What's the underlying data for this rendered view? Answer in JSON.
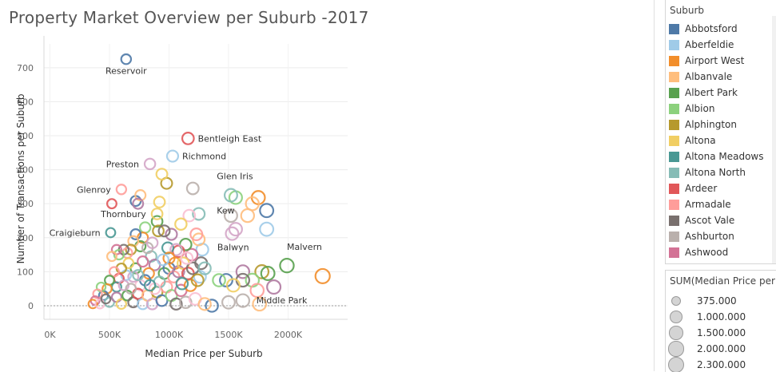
{
  "title": "Property Market Overview per Suburb -2017",
  "chart_data": {
    "type": "scatter",
    "xlabel": "Median Price per Suburb",
    "ylabel": "Number of Transactions per Suburb",
    "xlim": [
      -50000,
      2500000
    ],
    "ylim": [
      -40,
      770
    ],
    "x_ticks": [
      0,
      500000,
      1000000,
      1500000,
      2000000
    ],
    "x_tick_labels": [
      "0K",
      "500K",
      "1000K",
      "1500K",
      "2000K"
    ],
    "y_ticks": [
      0,
      100,
      200,
      300,
      400,
      500,
      600,
      700
    ],
    "y_tick_labels": [
      "0",
      "100",
      "200",
      "300",
      "400",
      "500",
      "600",
      "700"
    ],
    "grid": true,
    "labeled_points": [
      {
        "label": "Reservoir",
        "x": 640000,
        "y": 725,
        "size": 640000,
        "color": "#4e79a7",
        "label_pos": "below"
      },
      {
        "label": "Bentleigh East",
        "x": 1160000,
        "y": 492,
        "size": 1160000,
        "color": "#e15759",
        "label_pos": "right"
      },
      {
        "label": "Richmond",
        "x": 1030000,
        "y": 440,
        "size": 1030000,
        "color": "#a0cbe8",
        "label_pos": "right"
      },
      {
        "label": "Preston",
        "x": 840000,
        "y": 417,
        "size": 840000,
        "color": "#d4a6c8",
        "label_pos": "left"
      },
      {
        "label": "Glen Iris",
        "x": 1520000,
        "y": 325,
        "size": 1520000,
        "color": "#86bcb6",
        "label_pos": "above"
      },
      {
        "label": "Glenroy",
        "x": 600000,
        "y": 342,
        "size": 600000,
        "color": "#ff9d9a",
        "label_pos": "left"
      },
      {
        "label": "Thornbury",
        "x": 900000,
        "y": 270,
        "size": 900000,
        "color": "#f1ce63",
        "label_pos": "left"
      },
      {
        "label": "Kew",
        "x": 1820000,
        "y": 280,
        "size": 1820000,
        "color": "#4e79a7",
        "label_pos": "left-far"
      },
      {
        "label": "Craigieburn",
        "x": 510000,
        "y": 215,
        "size": 510000,
        "color": "#499894",
        "label_pos": "left"
      },
      {
        "label": "Balwyn",
        "x": 1820000,
        "y": 225,
        "size": 1820000,
        "color": "#a0cbe8",
        "label_pos": "below-left"
      },
      {
        "label": "Malvern",
        "x": 1990000,
        "y": 118,
        "size": 1990000,
        "color": "#59a14f",
        "label_pos": "above-right"
      },
      {
        "label": "Middle Park",
        "x": 1880000,
        "y": 55,
        "size": 1880000,
        "color": "#b07aa1",
        "label_pos": "below"
      }
    ],
    "other_points": [
      {
        "x": 2290000,
        "y": 87,
        "color": "#f28e2b"
      },
      {
        "x": 1620000,
        "y": 100,
        "color": "#b07aa1"
      },
      {
        "x": 1520000,
        "y": 265,
        "color": "#bab0ac"
      },
      {
        "x": 1480000,
        "y": 75,
        "color": "#4e79a7"
      },
      {
        "x": 1250000,
        "y": 270,
        "color": "#86bcb6"
      },
      {
        "x": 1200000,
        "y": 345,
        "color": "#bab0ac"
      },
      {
        "x": 1750000,
        "y": 318,
        "color": "#f28e2b"
      },
      {
        "x": 1700000,
        "y": 300,
        "color": "#ffbe7d"
      },
      {
        "x": 1560000,
        "y": 318,
        "color": "#8cd17d"
      },
      {
        "x": 1660000,
        "y": 265,
        "color": "#ffbe7d"
      },
      {
        "x": 1530000,
        "y": 212,
        "color": "#d4a6c8"
      },
      {
        "x": 1560000,
        "y": 225,
        "color": "#d4a6c8"
      },
      {
        "x": 1780000,
        "y": 100,
        "color": "#b6992d"
      },
      {
        "x": 1830000,
        "y": 95,
        "color": "#59a14f"
      },
      {
        "x": 1700000,
        "y": 75,
        "color": "#8cd17d"
      },
      {
        "x": 1740000,
        "y": 45,
        "color": "#ff9d9a"
      },
      {
        "x": 1760000,
        "y": 5,
        "color": "#ffbe7d"
      },
      {
        "x": 1620000,
        "y": 75,
        "color": "#79706e"
      },
      {
        "x": 1620000,
        "y": 15,
        "color": "#bab0ac"
      },
      {
        "x": 1500000,
        "y": 10,
        "color": "#bab0ac"
      },
      {
        "x": 1540000,
        "y": 60,
        "color": "#f1ce63"
      },
      {
        "x": 1420000,
        "y": 75,
        "color": "#8cd17d"
      },
      {
        "x": 1360000,
        "y": 0,
        "color": "#4e79a7"
      },
      {
        "x": 1280000,
        "y": 165,
        "color": "#a0cbe8"
      },
      {
        "x": 1270000,
        "y": 125,
        "color": "#79706e"
      },
      {
        "x": 1250000,
        "y": 195,
        "color": "#ffbe7d"
      },
      {
        "x": 1230000,
        "y": 210,
        "color": "#ff9d9a"
      },
      {
        "x": 1190000,
        "y": 150,
        "color": "#d37295"
      },
      {
        "x": 1170000,
        "y": 265,
        "color": "#fabfd2"
      },
      {
        "x": 1140000,
        "y": 180,
        "color": "#59a14f"
      },
      {
        "x": 1100000,
        "y": 240,
        "color": "#f1ce63"
      },
      {
        "x": 1080000,
        "y": 160,
        "color": "#e15759"
      },
      {
        "x": 1050000,
        "y": 125,
        "color": "#f28e2b"
      },
      {
        "x": 1020000,
        "y": 210,
        "color": "#b07aa1"
      },
      {
        "x": 980000,
        "y": 360,
        "color": "#b6992d"
      },
      {
        "x": 940000,
        "y": 387,
        "color": "#f1ce63"
      },
      {
        "x": 920000,
        "y": 305,
        "color": "#f1ce63"
      },
      {
        "x": 900000,
        "y": 248,
        "color": "#59a14f"
      },
      {
        "x": 910000,
        "y": 220,
        "color": "#b6992d"
      },
      {
        "x": 960000,
        "y": 220,
        "color": "#79706e"
      },
      {
        "x": 990000,
        "y": 170,
        "color": "#499894"
      },
      {
        "x": 720000,
        "y": 308,
        "color": "#4e79a7"
      },
      {
        "x": 760000,
        "y": 325,
        "color": "#ffbe7d"
      },
      {
        "x": 740000,
        "y": 300,
        "color": "#b07aa1"
      },
      {
        "x": 800000,
        "y": 230,
        "color": "#8cd17d"
      },
      {
        "x": 780000,
        "y": 200,
        "color": "#f28e2b"
      },
      {
        "x": 760000,
        "y": 175,
        "color": "#59a14f"
      },
      {
        "x": 720000,
        "y": 210,
        "color": "#4e79a7"
      },
      {
        "x": 700000,
        "y": 190,
        "color": "#ffbe7d"
      },
      {
        "x": 680000,
        "y": 165,
        "color": "#b6992d"
      },
      {
        "x": 650000,
        "y": 155,
        "color": "#ff9d9a"
      },
      {
        "x": 620000,
        "y": 165,
        "color": "#79706e"
      },
      {
        "x": 580000,
        "y": 150,
        "color": "#8cd17d"
      },
      {
        "x": 560000,
        "y": 165,
        "color": "#d37295"
      },
      {
        "x": 520000,
        "y": 145,
        "color": "#ffbe7d"
      },
      {
        "x": 520000,
        "y": 300,
        "color": "#e15759"
      },
      {
        "x": 850000,
        "y": 145,
        "color": "#86bcb6"
      },
      {
        "x": 880000,
        "y": 120,
        "color": "#b07aa1"
      },
      {
        "x": 830000,
        "y": 95,
        "color": "#f28e2b"
      },
      {
        "x": 800000,
        "y": 75,
        "color": "#4e79a7"
      },
      {
        "x": 760000,
        "y": 60,
        "color": "#fabfd2"
      },
      {
        "x": 720000,
        "y": 110,
        "color": "#59a14f"
      },
      {
        "x": 700000,
        "y": 85,
        "color": "#d4a6c8"
      },
      {
        "x": 660000,
        "y": 125,
        "color": "#f1ce63"
      },
      {
        "x": 640000,
        "y": 90,
        "color": "#a0cbe8"
      },
      {
        "x": 600000,
        "y": 110,
        "color": "#b6992d"
      },
      {
        "x": 580000,
        "y": 80,
        "color": "#e15759"
      },
      {
        "x": 560000,
        "y": 55,
        "color": "#499894"
      },
      {
        "x": 540000,
        "y": 100,
        "color": "#ff9d9a"
      },
      {
        "x": 500000,
        "y": 75,
        "color": "#59a14f"
      },
      {
        "x": 480000,
        "y": 50,
        "color": "#f28e2b"
      },
      {
        "x": 450000,
        "y": 30,
        "color": "#4e79a7"
      },
      {
        "x": 430000,
        "y": 55,
        "color": "#8cd17d"
      },
      {
        "x": 400000,
        "y": 35,
        "color": "#ff9d9a"
      },
      {
        "x": 380000,
        "y": 15,
        "color": "#d37295"
      },
      {
        "x": 360000,
        "y": 5,
        "color": "#f28e2b"
      },
      {
        "x": 420000,
        "y": 5,
        "color": "#fabfd2"
      },
      {
        "x": 500000,
        "y": 10,
        "color": "#86bcb6"
      },
      {
        "x": 560000,
        "y": 25,
        "color": "#b07aa1"
      },
      {
        "x": 600000,
        "y": 5,
        "color": "#f1ce63"
      },
      {
        "x": 650000,
        "y": 30,
        "color": "#59a14f"
      },
      {
        "x": 700000,
        "y": 10,
        "color": "#79706e"
      },
      {
        "x": 740000,
        "y": 35,
        "color": "#e15759"
      },
      {
        "x": 780000,
        "y": 5,
        "color": "#a0cbe8"
      },
      {
        "x": 820000,
        "y": 30,
        "color": "#ffbe7d"
      },
      {
        "x": 860000,
        "y": 5,
        "color": "#d4a6c8"
      },
      {
        "x": 900000,
        "y": 40,
        "color": "#b6992d"
      },
      {
        "x": 940000,
        "y": 15,
        "color": "#4e79a7"
      },
      {
        "x": 980000,
        "y": 55,
        "color": "#ff9d9a"
      },
      {
        "x": 1020000,
        "y": 30,
        "color": "#8cd17d"
      },
      {
        "x": 1060000,
        "y": 5,
        "color": "#79706e"
      },
      {
        "x": 1100000,
        "y": 45,
        "color": "#d37295"
      },
      {
        "x": 1140000,
        "y": 10,
        "color": "#bab0ac"
      },
      {
        "x": 1180000,
        "y": 60,
        "color": "#f28e2b"
      },
      {
        "x": 1220000,
        "y": 20,
        "color": "#fabfd2"
      },
      {
        "x": 1260000,
        "y": 85,
        "color": "#a0cbe8"
      },
      {
        "x": 1300000,
        "y": 5,
        "color": "#ffbe7d"
      },
      {
        "x": 960000,
        "y": 95,
        "color": "#59a14f"
      },
      {
        "x": 1000000,
        "y": 110,
        "color": "#4e79a7"
      },
      {
        "x": 1040000,
        "y": 85,
        "color": "#ff9d9a"
      },
      {
        "x": 1080000,
        "y": 100,
        "color": "#b07aa1"
      },
      {
        "x": 1120000,
        "y": 125,
        "color": "#f1ce63"
      },
      {
        "x": 1160000,
        "y": 95,
        "color": "#e15759"
      },
      {
        "x": 1200000,
        "y": 110,
        "color": "#79706e"
      },
      {
        "x": 1240000,
        "y": 75,
        "color": "#b6992d"
      },
      {
        "x": 920000,
        "y": 70,
        "color": "#86bcb6"
      },
      {
        "x": 880000,
        "y": 50,
        "color": "#fabfd2"
      },
      {
        "x": 840000,
        "y": 60,
        "color": "#499894"
      },
      {
        "x": 780000,
        "y": 130,
        "color": "#d37295"
      },
      {
        "x": 820000,
        "y": 170,
        "color": "#bab0ac"
      },
      {
        "x": 860000,
        "y": 185,
        "color": "#d4a6c8"
      },
      {
        "x": 1150000,
        "y": 140,
        "color": "#fabfd2"
      },
      {
        "x": 1300000,
        "y": 110,
        "color": "#86bcb6"
      },
      {
        "x": 1110000,
        "y": 65,
        "color": "#499894"
      },
      {
        "x": 1060000,
        "y": 165,
        "color": "#d4a6c8"
      },
      {
        "x": 470000,
        "y": 20,
        "color": "#79706e"
      },
      {
        "x": 620000,
        "y": 60,
        "color": "#d4a6c8"
      },
      {
        "x": 680000,
        "y": 50,
        "color": "#bab0ac"
      },
      {
        "x": 740000,
        "y": 90,
        "color": "#86bcb6"
      },
      {
        "x": 1000000,
        "y": 140,
        "color": "#f28e2b"
      },
      {
        "x": 950000,
        "y": 135,
        "color": "#a0cbe8"
      }
    ]
  },
  "legend_color": {
    "title": "Suburb",
    "items": [
      {
        "label": "Abbotsford",
        "color": "#4e79a7"
      },
      {
        "label": "Aberfeldie",
        "color": "#a0cbe8"
      },
      {
        "label": "Airport West",
        "color": "#f28e2b"
      },
      {
        "label": "Albanvale",
        "color": "#ffbe7d"
      },
      {
        "label": "Albert Park",
        "color": "#59a14f"
      },
      {
        "label": "Albion",
        "color": "#8cd17d"
      },
      {
        "label": "Alphington",
        "color": "#b6992d"
      },
      {
        "label": "Altona",
        "color": "#f1ce63"
      },
      {
        "label": "Altona Meadows",
        "color": "#499894"
      },
      {
        "label": "Altona North",
        "color": "#86bcb6"
      },
      {
        "label": "Ardeer",
        "color": "#e15759"
      },
      {
        "label": "Armadale",
        "color": "#ff9d9a"
      },
      {
        "label": "Ascot Vale",
        "color": "#79706e"
      },
      {
        "label": "Ashburton",
        "color": "#bab0ac"
      },
      {
        "label": "Ashwood",
        "color": "#d37295"
      }
    ]
  },
  "legend_size": {
    "title": "SUM(Median Price per ...",
    "items": [
      {
        "label": "375.000",
        "value": 375000
      },
      {
        "label": "1.000.000",
        "value": 1000000
      },
      {
        "label": "1.500.000",
        "value": 1500000
      },
      {
        "label": "2.000.000",
        "value": 2000000
      },
      {
        "label": "2.300.000",
        "value": 2300000
      }
    ]
  }
}
